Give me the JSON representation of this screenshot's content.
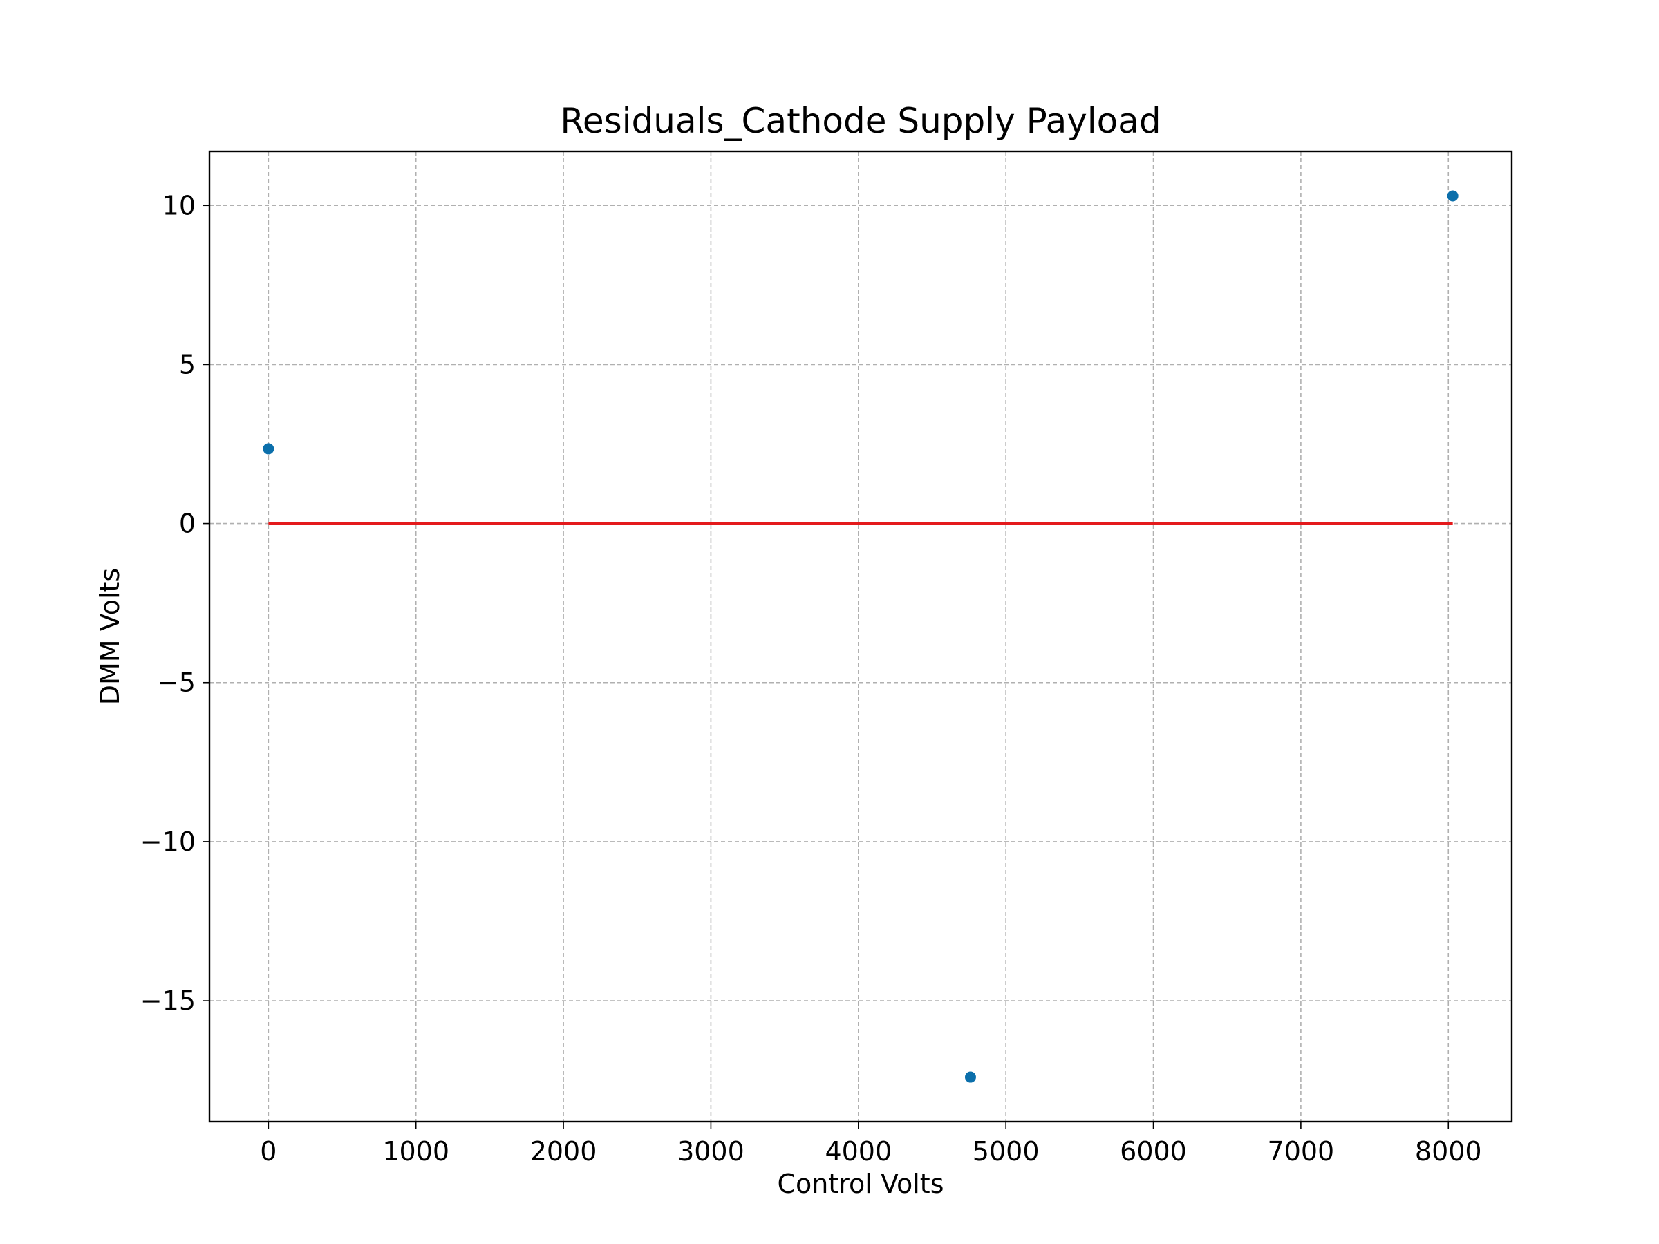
{
  "chart_data": {
    "type": "scatter",
    "title": "Residuals_Cathode Supply Payload",
    "xlabel": "Control Volts",
    "ylabel": "DMM Volts",
    "xlim": [
      -400,
      8430
    ],
    "ylim": [
      -18.8,
      11.7
    ],
    "xticks": [
      0,
      1000,
      2000,
      3000,
      4000,
      5000,
      6000,
      7000,
      8000
    ],
    "xtick_labels": [
      "0",
      "1000",
      "2000",
      "3000",
      "4000",
      "5000",
      "6000",
      "7000",
      "8000"
    ],
    "yticks": [
      10,
      5,
      0,
      -5,
      -10,
      -15
    ],
    "ytick_labels": [
      "10",
      "5",
      "0",
      "−5",
      "−10",
      "−15"
    ],
    "grid": true,
    "series": [
      {
        "type": "scatter",
        "color": "#0b6fab",
        "points": [
          {
            "x": 0,
            "y": 2.35
          },
          {
            "x": 4760,
            "y": -17.4
          },
          {
            "x": 8030,
            "y": 10.3
          }
        ]
      },
      {
        "type": "line",
        "color": "#e41a1c",
        "points": [
          {
            "x": 0,
            "y": 0
          },
          {
            "x": 8030,
            "y": 0
          }
        ]
      }
    ]
  }
}
